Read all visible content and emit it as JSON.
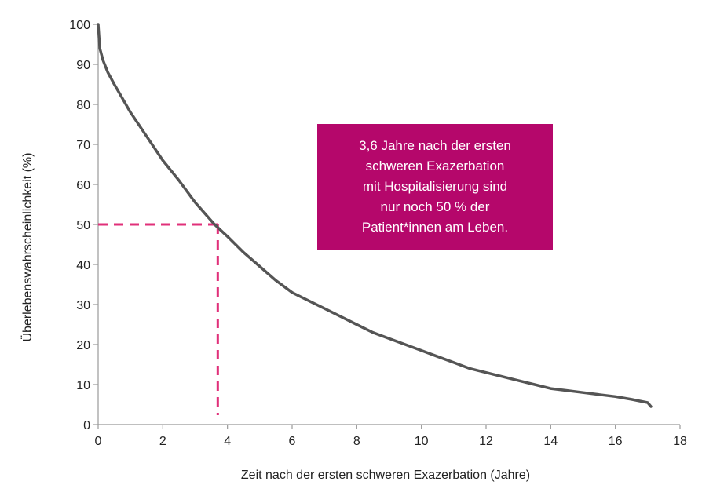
{
  "chart_data": {
    "type": "line",
    "title": "",
    "xlabel": "Zeit nach der ersten schweren Exazerbation (Jahre)",
    "ylabel": "Überlebenswahrscheinlichkeit (%)",
    "xlim": [
      0,
      18
    ],
    "ylim": [
      0,
      100
    ],
    "x_ticks": [
      0,
      2,
      4,
      6,
      8,
      10,
      12,
      14,
      16,
      18
    ],
    "y_ticks": [
      0,
      10,
      20,
      30,
      40,
      50,
      60,
      70,
      80,
      90,
      100
    ],
    "grid": false,
    "line_color": "#555555",
    "reference_color": "#e0307a",
    "series": [
      {
        "x": [
          0,
          0.05,
          0.15,
          0.3,
          0.5,
          1,
          1.5,
          2,
          2.5,
          3,
          3.6,
          4,
          4.5,
          5,
          5.5,
          6,
          6.5,
          7,
          7.5,
          8,
          8.5,
          9,
          9.5,
          10,
          10.5,
          11,
          11.5,
          12,
          12.5,
          13,
          13.5,
          14,
          14.5,
          15,
          15.5,
          16,
          16.5,
          17,
          17.1
        ],
        "y": [
          100,
          94,
          91,
          88,
          85,
          78,
          72,
          66,
          61,
          55.5,
          50,
          47,
          43,
          39.5,
          36,
          33,
          31,
          29,
          27,
          25,
          23,
          21.5,
          20,
          18.5,
          17,
          15.5,
          14,
          13,
          12,
          11,
          10,
          9,
          8.5,
          8,
          7.5,
          7,
          6.3,
          5.5,
          4.5
        ]
      }
    ],
    "reference": {
      "x": 3.7,
      "y": 50
    },
    "annotation": {
      "lines": [
        "3,6 Jahre nach der ersten",
        "schweren Exazerbation",
        "mit Hospitalisierung sind",
        "nur noch 50 % der",
        "Patient*innen am Leben."
      ],
      "background": "#b5076b",
      "text_color": "#ffffff"
    }
  }
}
